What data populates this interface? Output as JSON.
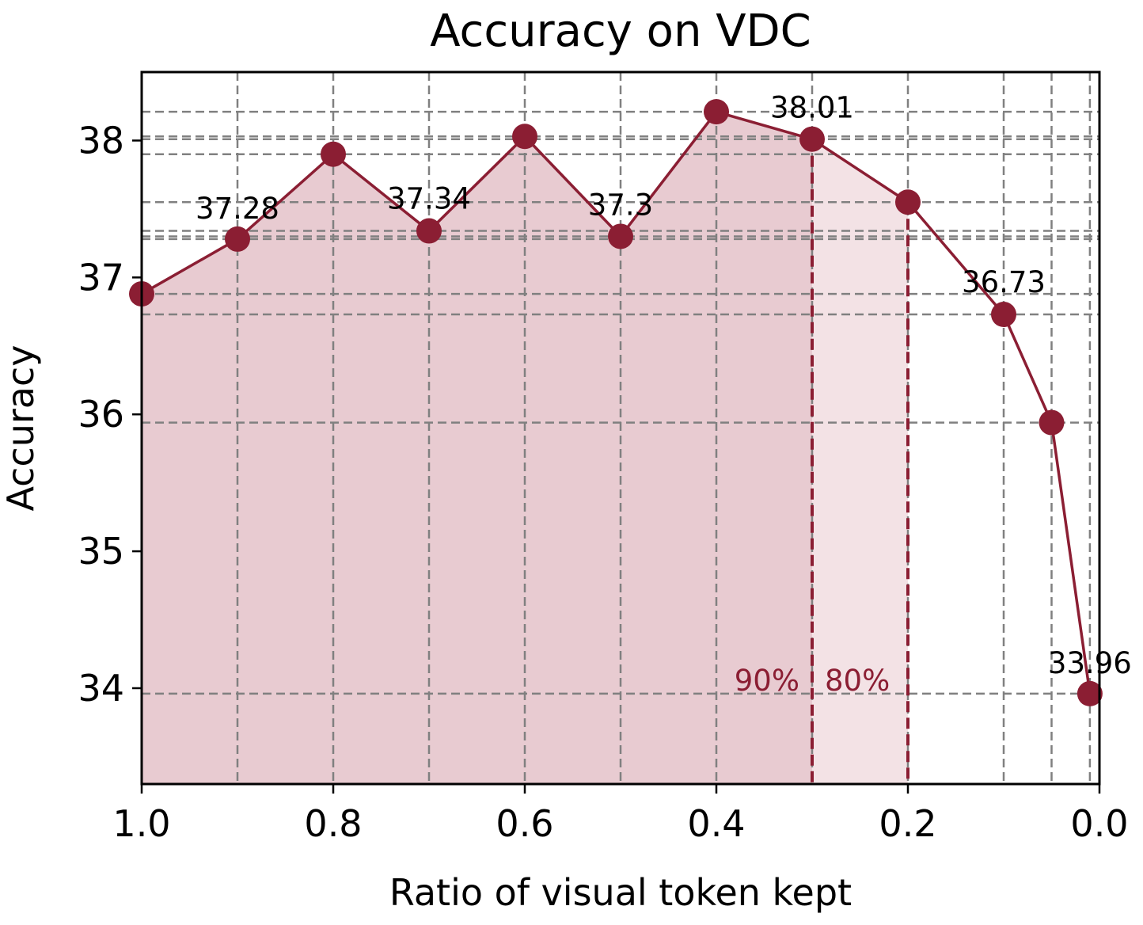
{
  "chart_data": {
    "type": "line",
    "title": "Accuracy on VDC",
    "xlabel": "Ratio of visual token kept",
    "ylabel": "Accuracy",
    "x_reversed": true,
    "xlim": [
      1.0,
      0.0
    ],
    "ylim": [
      33.3,
      38.5
    ],
    "xticks": [
      1.0,
      0.8,
      0.6,
      0.4,
      0.2,
      0.0
    ],
    "xtick_labels": [
      "1.0",
      "0.8",
      "0.6",
      "0.4",
      "0.2",
      "0.0"
    ],
    "yticks": [
      34,
      35,
      36,
      37,
      38
    ],
    "ytick_labels": [
      "34",
      "35",
      "36",
      "37",
      "38"
    ],
    "grid": true,
    "series": [
      {
        "x": [
          1.0,
          0.9,
          0.8,
          0.7,
          0.6,
          0.5,
          0.4,
          0.3,
          0.2,
          0.1,
          0.05,
          0.01
        ],
        "y": [
          36.88,
          37.28,
          37.9,
          37.34,
          38.03,
          37.3,
          38.21,
          38.01,
          37.55,
          36.73,
          35.94,
          33.96
        ],
        "color": "#8b1e33"
      }
    ],
    "data_labels": [
      {
        "x": 0.9,
        "y": 37.28,
        "text": "37.28"
      },
      {
        "x": 0.7,
        "y": 37.34,
        "text": "37.34"
      },
      {
        "x": 0.5,
        "y": 37.3,
        "text": "37.3"
      },
      {
        "x": 0.3,
        "y": 38.01,
        "text": "38.01"
      },
      {
        "x": 0.1,
        "y": 36.73,
        "text": "36.73"
      },
      {
        "x": 0.01,
        "y": 33.96,
        "text": "33.96"
      }
    ],
    "thresholds": [
      {
        "x": 0.3,
        "label": "90%",
        "fill": "#e8cbd1"
      },
      {
        "x": 0.2,
        "label": "80%",
        "fill": "#f3e2e5"
      }
    ],
    "colors": {
      "line": "#8b1e33",
      "threshold": "#8b1e33",
      "grid": "#808080"
    }
  }
}
